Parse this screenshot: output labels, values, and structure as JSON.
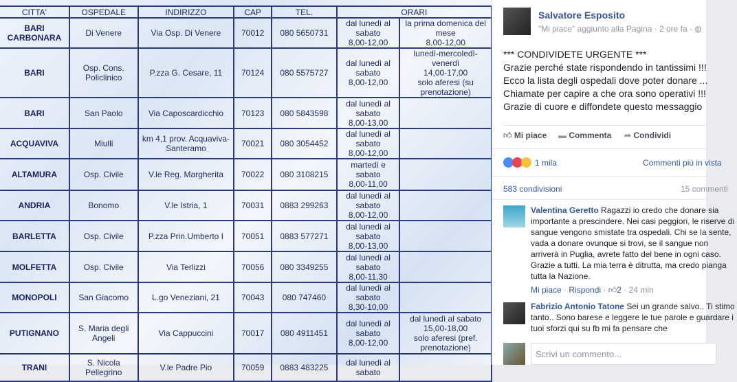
{
  "table": {
    "headers": [
      "CITTA'",
      "OSPEDALE",
      "INDIRIZZO",
      "CAP",
      "TEL.",
      "ORARI"
    ],
    "rows": [
      {
        "city": "BARI\nCARBONARA",
        "hospital": "Di Venere",
        "address": "Via Osp. Di Venere",
        "cap": "70012",
        "tel": "080 5650731",
        "hours": "dal lunedì al\nsabato\n8,00-12,00",
        "extra": "la prima domenica del\nmese\n8,00-12,00"
      },
      {
        "city": "BARI",
        "hospital": "Osp. Cons.\nPoliclinico",
        "address": "P.zza G. Cesare, 11",
        "cap": "70124",
        "tel": "080 5575727",
        "hours": "dal lunedì al\nsabato\n8,00-12,00",
        "extra": "lunedì-mercoledì-venerdì\n14,00-17,00\nsolo aferesi (su\nprenotazione)"
      },
      {
        "city": "BARI",
        "hospital": "San Paolo",
        "address": "Via Caposcardicchio",
        "cap": "70123",
        "tel": "080 5843598",
        "hours": "dal lunedì al\nsabato\n8,00-13,00",
        "extra": ""
      },
      {
        "city": "ACQUAVIVA",
        "hospital": "Miulli",
        "address": "km 4,1 prov. Acquaviva-\nSanteramo",
        "cap": "70021",
        "tel": "080 3054452",
        "hours": "dal lunedì al\nsabato\n8,00-12,00",
        "extra": ""
      },
      {
        "city": "ALTAMURA",
        "hospital": "Osp. Civile",
        "address": "V.le Reg. Margherita",
        "cap": "70022",
        "tel": "080 3108215",
        "hours": "martedì e\nsabato\n8,00-11,00",
        "extra": ""
      },
      {
        "city": "ANDRIA",
        "hospital": "Bonomo",
        "address": "V.le Istria, 1",
        "cap": "70031",
        "tel": "0883 299263",
        "hours": "dal lunedì al\nsabato\n8,00-12,00",
        "extra": ""
      },
      {
        "city": "BARLETTA",
        "hospital": "Osp. Civile",
        "address": "P.zza Prin.Umberto I",
        "cap": "70051",
        "tel": "0883 577271",
        "hours": "dal lunedì al\nsabato\n8,00-13,00",
        "extra": ""
      },
      {
        "city": "MOLFETTA",
        "hospital": "Osp. Civile",
        "address": "Via Terlizzi",
        "cap": "70056",
        "tel": "080 3349255",
        "hours": "dal lunedì al\nsabato\n8,00-11,30",
        "extra": ""
      },
      {
        "city": "MONOPOLI",
        "hospital": "San Giacomo",
        "address": "L.go Veneziani, 21",
        "cap": "70043",
        "tel": "080 747460",
        "hours": "dal lunedì al\nsabato\n8,30-10,00",
        "extra": ""
      },
      {
        "city": "PUTIGNANO",
        "hospital": "S. Maria degli\nAngeli",
        "address": "Via Cappuccini",
        "cap": "70017",
        "tel": "080 4911451",
        "hours": "dal lunedì al\nsabato\n8,00-12,00",
        "extra": "dal lunedì al sabato\n15,00-18,00\nsolo aferesi (pref.\nprenotazione)"
      },
      {
        "city": "TRANI",
        "hospital": "S. Nicola\nPellegrino",
        "address": "V.le Padre Pio",
        "cap": "70059",
        "tel": "0883 483225",
        "hours": "dal lunedì al\nsabato",
        "extra": ""
      }
    ]
  },
  "post": {
    "author": "Salvatore Esposito",
    "meta": "\"Mi piace\" aggiunto alla Pagina · 2 ore fa · ",
    "text": "*** CONDIVIDETE URGENTE ***\nGrazie perché state rispondendo in tantissimi !!!\nEcco la lista degli ospedali dove poter donare ...\nChiamate per capire a che ora sono operativi !!!\nGrazie di cuore e diffondete questo messaggio",
    "like_label": "Mi piace",
    "comment_label": "Commenta",
    "share_label": "Condividi",
    "reactions_count": "1 mila",
    "comments_sort": "Commenti più in vista",
    "shares": "583 condivisioni",
    "comments_count": "15 commenti",
    "comments": [
      {
        "author": "Valentina Geretto",
        "text": " Ragazzi io credo che donare sia importante a prescindere. Nei casi peggiori, le riserve di sangue vengono smistate tra ospedali. Chi se la sente, vada a donare ovunque si trovi, se il sangue non arriverà in Puglia, avrete fatto del bene in ogni caso. Grazie a tutti. La mia terra è ditrutta, ma credo pianga tutta la Nazione.",
        "like": "Mi piace",
        "reply": "Rispondi",
        "likes": "2",
        "time": "24 min"
      },
      {
        "author": "Fabrizio Antonio Tatone",
        "text": " Sei un grande salvo.. Ti stimo tanto.. Sono barese e leggere le tue parole e guardare i tuoi sforzi qui su fb mi fa pensare che"
      }
    ],
    "comment_placeholder": "Scrivi un commento..."
  }
}
